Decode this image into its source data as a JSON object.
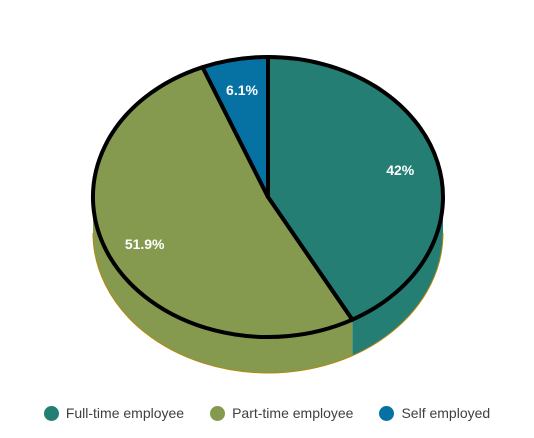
{
  "chart_data": {
    "type": "pie",
    "categories": [
      "Full-time employee",
      "Part-time employee",
      "Self employed"
    ],
    "values": [
      42,
      51.9,
      6.1
    ],
    "labels": [
      "42%",
      "51.9%",
      "6.1%"
    ],
    "colors": [
      "#247E74",
      "#859A4E",
      "#0672A4"
    ],
    "side_colors": [
      "#247E74",
      "#859A4E",
      "#0672A4"
    ],
    "title": "",
    "three_d": true,
    "legend_position": "bottom"
  },
  "legend": {
    "items": [
      {
        "label": "Full-time employee",
        "color": "#247E74"
      },
      {
        "label": "Part-time employee",
        "color": "#859A4E"
      },
      {
        "label": "Self employed",
        "color": "#0672A4"
      }
    ]
  }
}
